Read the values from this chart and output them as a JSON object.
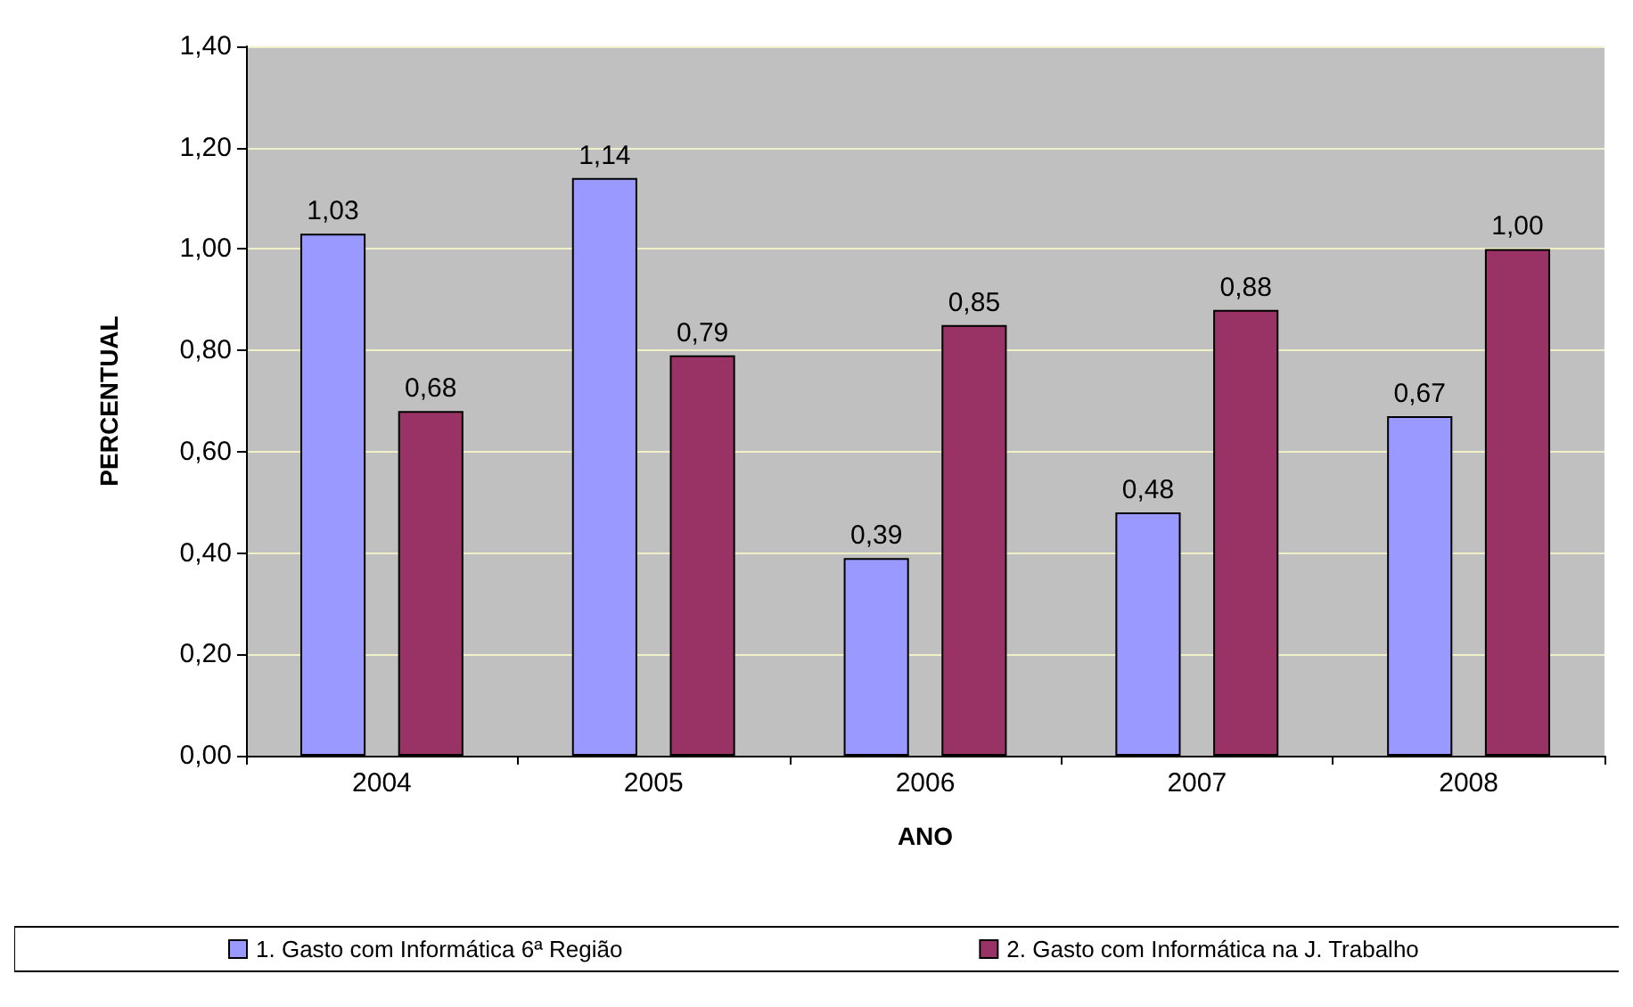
{
  "chart_data": {
    "type": "bar",
    "xlabel": "ANO",
    "ylabel": "PERCENTUAL",
    "categories": [
      "2004",
      "2005",
      "2006",
      "2007",
      "2008"
    ],
    "series": [
      {
        "name": "1. Gasto com Informática 6ª Região",
        "color": "#9999ff",
        "values": [
          1.03,
          1.14,
          0.39,
          0.48,
          0.67
        ],
        "value_labels": [
          "1,03",
          "1,14",
          "0,39",
          "0,48",
          "0,67"
        ]
      },
      {
        "name": "2. Gasto com Informática na J. Trabalho",
        "color": "#993366",
        "values": [
          0.68,
          0.79,
          0.85,
          0.88,
          1.0
        ],
        "value_labels": [
          "0,68",
          "0,79",
          "0,85",
          "0,88",
          "1,00"
        ]
      }
    ],
    "ylim": [
      0,
      1.4
    ],
    "yticks": [
      {
        "value": 0,
        "label": "0,00"
      },
      {
        "value": 0.2,
        "label": "0,20"
      },
      {
        "value": 0.4,
        "label": "0,40"
      },
      {
        "value": 0.6,
        "label": "0,60"
      },
      {
        "value": 0.8,
        "label": "0,80"
      },
      {
        "value": 1.0,
        "label": "1,00"
      },
      {
        "value": 1.2,
        "label": "1,20"
      },
      {
        "value": 1.4,
        "label": "1,40"
      }
    ],
    "grid": "y",
    "legend": "bottom"
  }
}
